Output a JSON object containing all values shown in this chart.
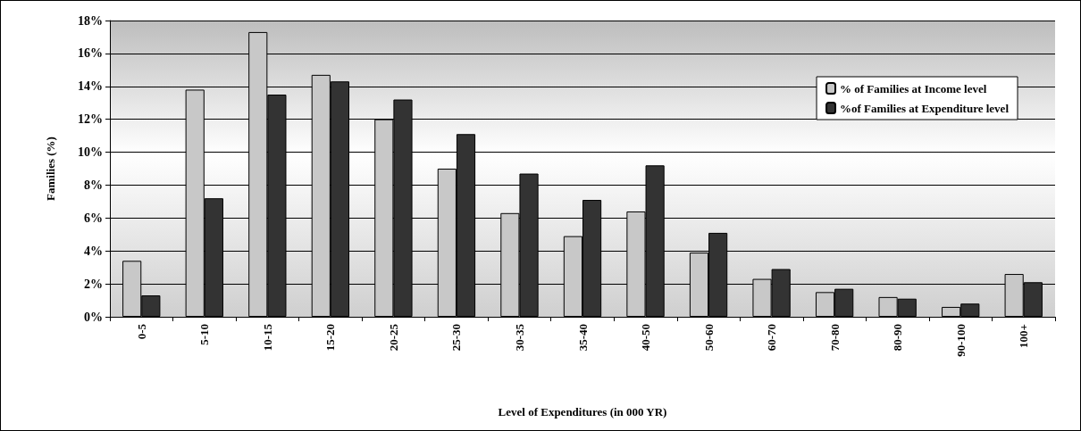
{
  "chart_data": {
    "type": "bar",
    "xlabel": "Level of Expenditures (in 000 YR)",
    "ylabel": "Families (%)",
    "categories": [
      "0-5",
      "5-10",
      "10-15",
      "15-20",
      "20-25",
      "25-30",
      "30-35",
      "35-40",
      "40-50",
      "50-60",
      "60-70",
      "70-80",
      "80-90",
      "90-100",
      "100+"
    ],
    "series": [
      {
        "name": "% of Families at Income level",
        "color": "#c8c8c8",
        "values": [
          3.4,
          13.8,
          17.3,
          14.7,
          12.0,
          9.0,
          6.3,
          4.9,
          6.4,
          3.9,
          2.3,
          1.5,
          1.2,
          0.6,
          2.6
        ]
      },
      {
        "name": "%of Families at Expenditure level",
        "color": "#333333",
        "values": [
          1.3,
          7.2,
          13.5,
          14.3,
          13.2,
          11.1,
          8.7,
          7.1,
          9.2,
          5.1,
          2.9,
          1.7,
          1.1,
          0.8,
          2.1
        ]
      }
    ],
    "ylim": [
      0,
      18
    ],
    "yticks": [
      {
        "value": 0,
        "label": "0%"
      },
      {
        "value": 2,
        "label": "2%"
      },
      {
        "value": 4,
        "label": "4%"
      },
      {
        "value": 6,
        "label": "6%"
      },
      {
        "value": 8,
        "label": "8%"
      },
      {
        "value": 10,
        "label": "10%"
      },
      {
        "value": 12,
        "label": "12%"
      },
      {
        "value": 14,
        "label": "14%"
      },
      {
        "value": 16,
        "label": "16%"
      },
      {
        "value": 18,
        "label": "18%"
      }
    ],
    "grid": "y",
    "legend": "top right"
  }
}
